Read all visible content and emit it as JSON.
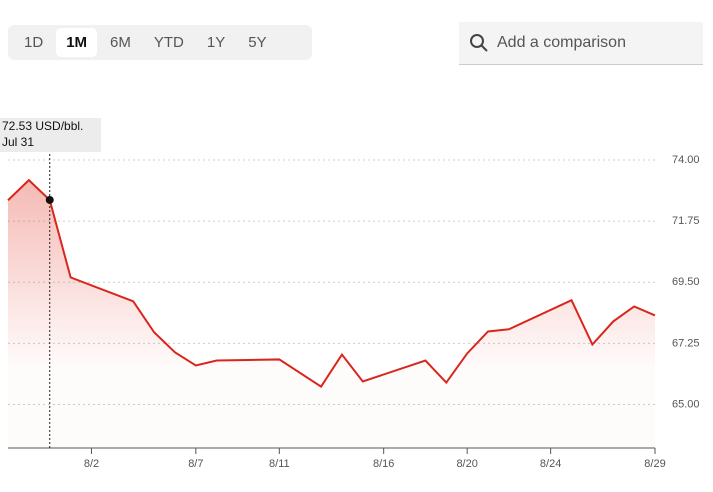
{
  "controls": {
    "ranges": [
      {
        "label": "1D",
        "selected": false
      },
      {
        "label": "1M",
        "selected": true
      },
      {
        "label": "6M",
        "selected": false
      },
      {
        "label": "YTD",
        "selected": false
      },
      {
        "label": "1Y",
        "selected": false
      },
      {
        "label": "5Y",
        "selected": false
      }
    ],
    "search_placeholder": "Add a comparison"
  },
  "chart_data": {
    "type": "line",
    "x": [
      "7/29",
      "7/30",
      "7/31",
      "8/1",
      "8/4",
      "8/5",
      "8/6",
      "8/7",
      "8/8",
      "8/11",
      "8/13",
      "8/14",
      "8/15",
      "8/18",
      "8/19",
      "8/20",
      "8/21",
      "8/22",
      "8/25",
      "8/26",
      "8/27",
      "8/28",
      "8/29"
    ],
    "series": [
      {
        "color": "#d9261c",
        "values": [
          72.52,
          73.26,
          72.53,
          69.68,
          68.8,
          67.66,
          66.92,
          66.44,
          66.62,
          66.66,
          65.66,
          66.84,
          65.85,
          66.62,
          65.81,
          66.88,
          67.69,
          67.77,
          68.84,
          67.21,
          68.06,
          68.61,
          68.28
        ]
      }
    ],
    "xlim": [
      "7/29",
      "8/29"
    ],
    "xticks": [
      "8/2",
      "8/7",
      "8/11",
      "8/16",
      "8/20",
      "8/24",
      "8/29"
    ],
    "ylim": [
      63.4,
      74.37
    ],
    "yticks": [
      {
        "value": 65,
        "label": "65.00"
      },
      {
        "value": 67.25,
        "label": "67.25"
      },
      {
        "value": 69.5,
        "label": "69.50"
      },
      {
        "value": 71.75,
        "label": "71.75"
      },
      {
        "value": 74,
        "label": "74.00"
      }
    ],
    "grid": true,
    "tooltip": {
      "value": 72.53,
      "label": "72.53 USD/bbl.",
      "date": "Jul 31"
    }
  }
}
